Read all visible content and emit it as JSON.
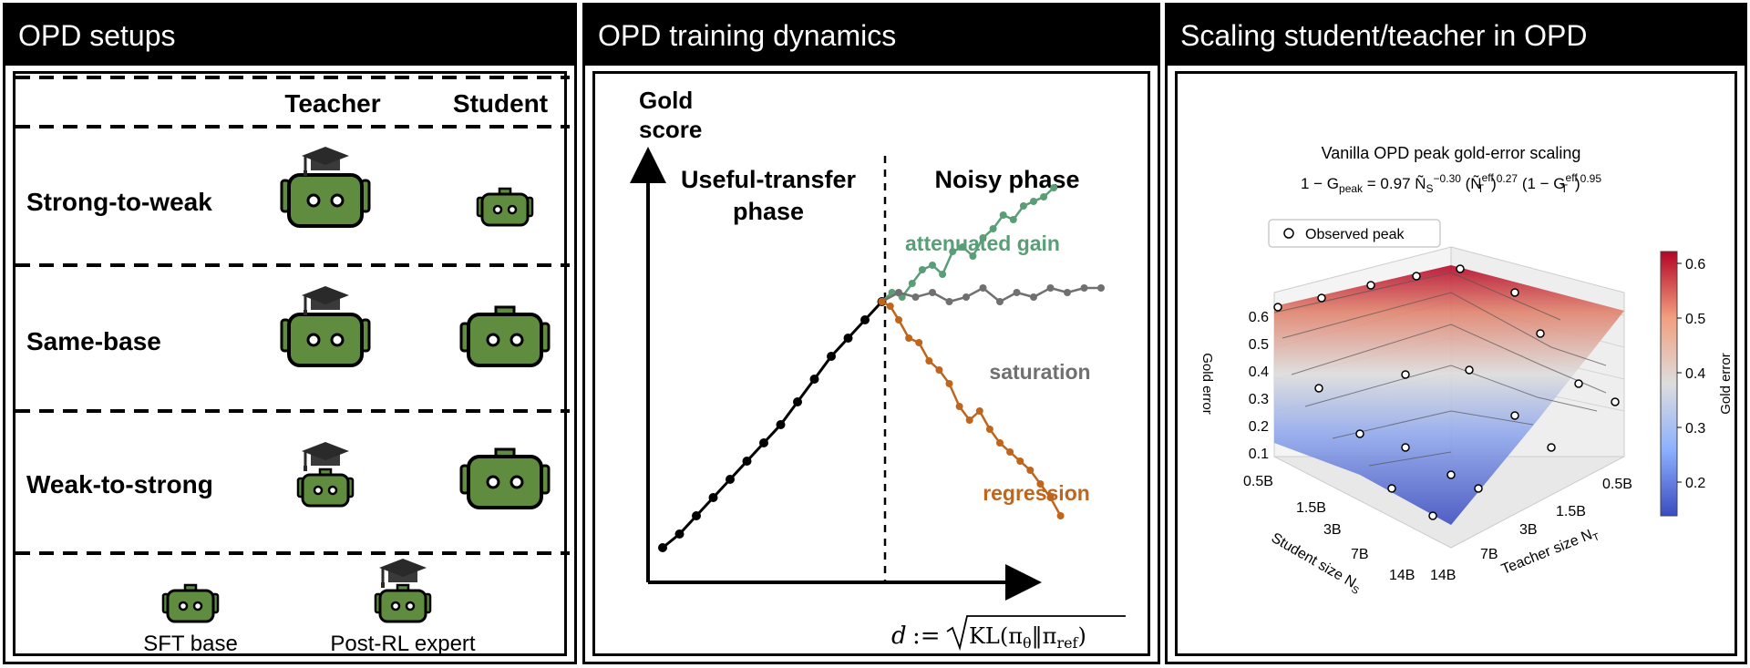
{
  "panels": {
    "setups": {
      "title": "OPD setups",
      "col_teacher": "Teacher",
      "col_student": "Student",
      "rows": [
        "Strong-to-weak",
        "Same-base",
        "Weak-to-strong"
      ],
      "legend_sft": "SFT base",
      "legend_expert": "Post-RL expert"
    },
    "dynamics": {
      "title": "OPD training dynamics",
      "y_label_1": "Gold",
      "y_label_2": "score",
      "phase_left_1": "Useful-transfer",
      "phase_left_2": "phase",
      "phase_right": "Noisy phase",
      "label_gain": "attenuated gain",
      "label_saturation": "saturation",
      "label_regression": "regression",
      "x_label_lhs": "d",
      "x_label_op": ":=",
      "x_label_kl": "KL(π",
      "x_label_theta": "θ",
      "x_label_mid": "‖π",
      "x_label_ref": "ref",
      "x_label_close": ")",
      "colors": {
        "gain": "#5a9e77",
        "saturation": "#707070",
        "regression": "#c0651c"
      }
    },
    "scaling": {
      "title": "Scaling student/teacher in OPD",
      "plot_title": "Vanilla OPD peak gold-error scaling",
      "eq_lhs": "1 − G",
      "eq_lhs_sub": "peak",
      "eq_mid": " = 0.97 Ñ",
      "eq_ns_sub": "S",
      "eq_ns_exp": "−0.30",
      "eq_nt": " (Ñ",
      "eq_nt_sup": "eff",
      "eq_nt_sub": "T",
      "eq_nt_exp": ")",
      "eq_nt_pow": "0.27",
      "eq_g": " (1 − G",
      "eq_g_sup": "eff",
      "eq_g_sub": "T",
      "eq_g_close": ")",
      "eq_g_pow": "0.95",
      "legend": "Observed peak",
      "z_label": "Gold error",
      "z_ticks": [
        "0.6",
        "0.5",
        "0.4",
        "0.3",
        "0.2",
        "0.1"
      ],
      "student_ticks": [
        "0.5B",
        "1.5B",
        "3B",
        "7B",
        "14B"
      ],
      "teacher_ticks": [
        "0.5B",
        "1.5B",
        "3B",
        "7B",
        "14B"
      ],
      "student_axis": "Student size N",
      "student_axis_sub": "S",
      "teacher_axis": "Teacher size N",
      "teacher_axis_sub": "T",
      "cbar_label": "Gold error",
      "cbar_ticks": [
        "0.6",
        "0.5",
        "0.4",
        "0.3",
        "0.2"
      ],
      "cbar_colors": {
        "high": "#b40426",
        "mid": "#dddddd",
        "low": "#3b4cc0"
      }
    }
  },
  "chart_data": {
    "type": "line",
    "title": "",
    "xlabel": "d := sqrt(KL(πθ‖πref))",
    "ylabel": "Gold score",
    "series": [
      {
        "name": "",
        "values": [
          [
            0,
            0.1
          ],
          [
            1,
            0.13
          ],
          [
            2,
            0.17
          ],
          [
            3,
            0.21
          ],
          [
            4,
            0.25
          ],
          [
            5,
            0.29
          ],
          [
            6,
            0.33
          ],
          [
            7,
            0.37
          ],
          [
            8,
            0.42
          ],
          [
            9,
            0.47
          ],
          [
            10,
            0.52
          ],
          [
            11,
            0.56
          ],
          [
            12,
            0.6
          ],
          [
            13,
            0.64
          ]
        ]
      },
      {
        "name": "attenuated gain",
        "values": [
          [
            13,
            0.64
          ],
          [
            13.6,
            0.66
          ],
          [
            14.2,
            0.65
          ],
          [
            14.8,
            0.68
          ],
          [
            15.4,
            0.71
          ],
          [
            16,
            0.72
          ],
          [
            16.6,
            0.7
          ],
          [
            17.2,
            0.75
          ],
          [
            17.8,
            0.76
          ],
          [
            18.4,
            0.74
          ],
          [
            19,
            0.78
          ],
          [
            19.6,
            0.8
          ],
          [
            20.2,
            0.83
          ],
          [
            20.8,
            0.82
          ],
          [
            21.4,
            0.85
          ],
          [
            22,
            0.86
          ],
          [
            22.6,
            0.87
          ],
          [
            23.2,
            0.89
          ]
        ]
      },
      {
        "name": "saturation",
        "values": [
          [
            13,
            0.64
          ],
          [
            14,
            0.66
          ],
          [
            15,
            0.65
          ],
          [
            16,
            0.66
          ],
          [
            17,
            0.64
          ],
          [
            18,
            0.65
          ],
          [
            19,
            0.67
          ],
          [
            20,
            0.64
          ],
          [
            21,
            0.66
          ],
          [
            22,
            0.65
          ],
          [
            23,
            0.67
          ],
          [
            24,
            0.66
          ],
          [
            25,
            0.67
          ],
          [
            26,
            0.67
          ]
        ]
      },
      {
        "name": "regression",
        "values": [
          [
            13,
            0.64
          ],
          [
            13.5,
            0.63
          ],
          [
            14,
            0.6
          ],
          [
            14.6,
            0.56
          ],
          [
            15.2,
            0.55
          ],
          [
            15.8,
            0.51
          ],
          [
            16.4,
            0.49
          ],
          [
            17,
            0.46
          ],
          [
            17.6,
            0.41
          ],
          [
            18.2,
            0.38
          ],
          [
            18.8,
            0.4
          ],
          [
            19.4,
            0.36
          ],
          [
            20,
            0.33
          ],
          [
            20.6,
            0.31
          ],
          [
            21.2,
            0.29
          ],
          [
            21.8,
            0.27
          ],
          [
            22.4,
            0.24
          ],
          [
            23,
            0.21
          ],
          [
            23.6,
            0.17
          ]
        ]
      }
    ]
  }
}
